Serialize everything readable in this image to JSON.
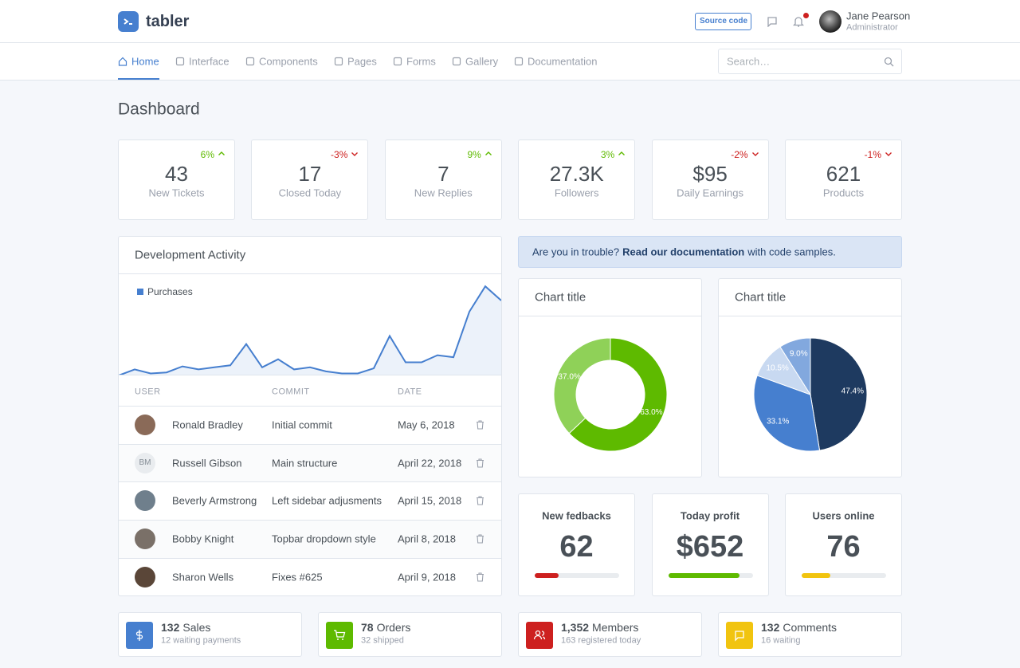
{
  "header": {
    "brand": "tabler",
    "source_button": "Source code",
    "user_name": "Jane Pearson",
    "user_role": "Administrator"
  },
  "nav": {
    "items": [
      "Home",
      "Interface",
      "Components",
      "Pages",
      "Forms",
      "Gallery",
      "Documentation"
    ],
    "active": 0,
    "search_placeholder": "Search…"
  },
  "page_title": "Dashboard",
  "stats": [
    {
      "change": "6%",
      "trend": "up",
      "value": "43",
      "label": "New Tickets"
    },
    {
      "change": "-3%",
      "trend": "down",
      "value": "17",
      "label": "Closed Today"
    },
    {
      "change": "9%",
      "trend": "up",
      "value": "7",
      "label": "New Replies"
    },
    {
      "change": "3%",
      "trend": "up",
      "value": "27.3K",
      "label": "Followers"
    },
    {
      "change": "-2%",
      "trend": "down",
      "value": "$95",
      "label": "Daily Earnings"
    },
    {
      "change": "-1%",
      "trend": "down",
      "value": "621",
      "label": "Products"
    }
  ],
  "dev_activity": {
    "title": "Development Activity",
    "columns": [
      "USER",
      "COMMIT",
      "DATE"
    ],
    "rows": [
      {
        "name": "Ronald Bradley",
        "commit": "Initial commit",
        "date": "May 6, 2018"
      },
      {
        "initials": "BM",
        "name": "Russell Gibson",
        "commit": "Main structure",
        "date": "April 22, 2018"
      },
      {
        "name": "Beverly Armstrong",
        "commit": "Left sidebar adjusments",
        "date": "April 15, 2018"
      },
      {
        "name": "Bobby Knight",
        "commit": "Topbar dropdown style",
        "date": "April 8, 2018"
      },
      {
        "name": "Sharon Wells",
        "commit": "Fixes #625",
        "date": "April 9, 2018"
      }
    ]
  },
  "alert": {
    "before": "Are you in trouble?",
    "link": "Read our documentation",
    "after": "with code samples."
  },
  "chart_data": [
    {
      "type": "line",
      "ylim": [
        0,
        100
      ],
      "legend": true,
      "series": [
        {
          "name": "Purchases",
          "color": "#467fcf",
          "values": [
            0,
            6,
            2,
            3,
            9,
            6,
            8,
            10,
            31,
            8,
            16,
            6,
            8,
            4,
            2,
            2,
            7,
            39,
            13,
            13,
            20,
            18,
            63,
            88,
            74
          ]
        }
      ]
    },
    {
      "type": "donut",
      "title": "Chart title",
      "values": [
        63,
        37
      ],
      "value_labels": [
        "63.0%",
        "37.0%"
      ],
      "colors": [
        "#5eba00",
        "#8fd158"
      ]
    },
    {
      "type": "pie",
      "title": "Chart title",
      "values": [
        47.4,
        33.1,
        10.5,
        9.0
      ],
      "value_labels": [
        "47.4%",
        "33.1%",
        "10.5%",
        "9.0%"
      ],
      "colors": [
        "#1e3a60",
        "#467fcf",
        "#c8d9f1",
        "#82a8de"
      ]
    }
  ],
  "metrics": [
    {
      "title": "New fedbacks",
      "value": "62",
      "progress": 28,
      "color": "#cd201f"
    },
    {
      "title": "Today profit",
      "value": "$652",
      "progress": 84,
      "color": "#5eba00"
    },
    {
      "title": "Users online",
      "value": "76",
      "progress": 34,
      "color": "#f1c40f"
    }
  ],
  "summary": [
    {
      "count": "132",
      "label": "Sales",
      "sub": "12 waiting payments",
      "color": "#467fcf",
      "icon": "dollar"
    },
    {
      "count": "78",
      "label": "Orders",
      "sub": "32 shipped",
      "color": "#5eba00",
      "icon": "cart"
    },
    {
      "count": "1,352",
      "label": "Members",
      "sub": "163 registered today",
      "color": "#cd201f",
      "icon": "users"
    },
    {
      "count": "132",
      "label": "Comments",
      "sub": "16 waiting",
      "color": "#f1c40f",
      "icon": "comment"
    }
  ]
}
